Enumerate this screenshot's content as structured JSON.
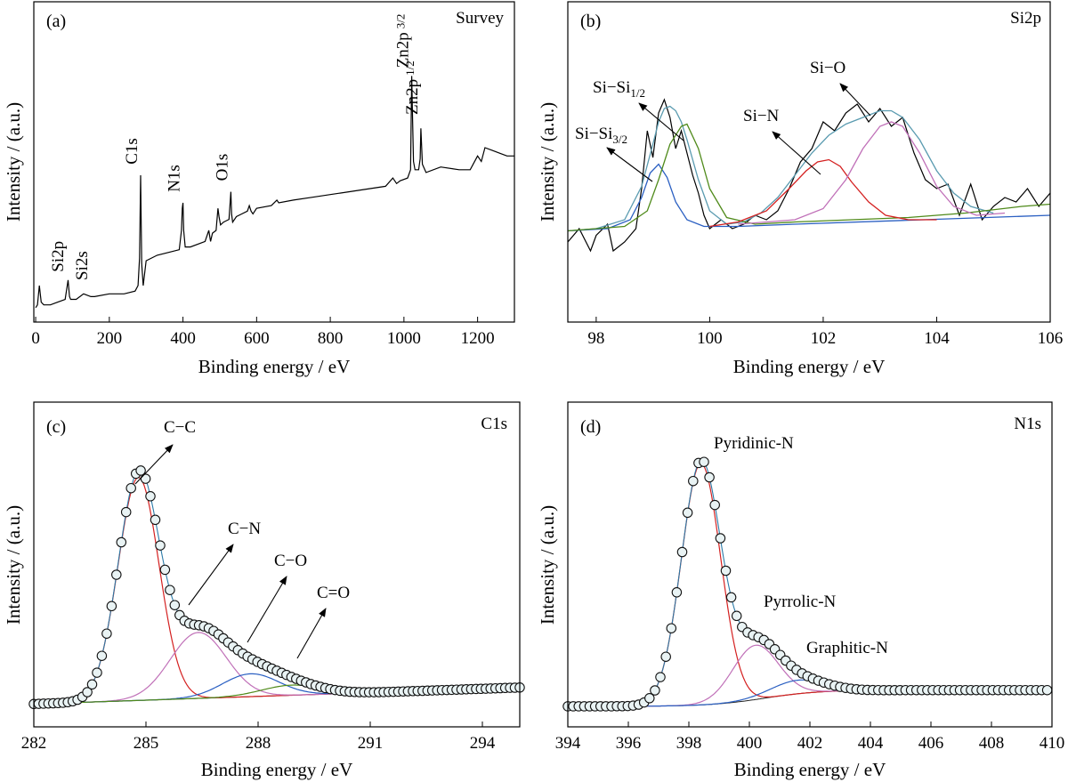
{
  "chart_data": [
    {
      "type": "line",
      "panel": "(a)",
      "title": "Survey",
      "xlabel": "Binding energy / eV",
      "ylabel": "Intensity / (a.u.)",
      "xlim": [
        -5,
        1300
      ],
      "ylim": [
        0,
        1
      ],
      "xticks": [
        "0",
        "200",
        "400",
        "600",
        "800",
        "1000",
        "1200"
      ],
      "grid": false,
      "series": [
        {
          "color": "#000000",
          "x": [
            0,
            5,
            10,
            15,
            22,
            40,
            60,
            80,
            88,
            92,
            95,
            110,
            130,
            150,
            160,
            200,
            240,
            270,
            278,
            282,
            285,
            288,
            292,
            300,
            330,
            360,
            390,
            396,
            398,
            400,
            402,
            406,
            420,
            460,
            470,
            475,
            480,
            490,
            495,
            498,
            502,
            510,
            525,
            530,
            532,
            535,
            545,
            560,
            575,
            580,
            585,
            590,
            600,
            640,
            655,
            660,
            700,
            750,
            800,
            850,
            900,
            950,
            970,
            980,
            990,
            1010,
            1018,
            1021,
            1023,
            1026,
            1030,
            1040,
            1044,
            1046,
            1050,
            1060,
            1100,
            1150,
            1180,
            1200,
            1210,
            1220,
            1240,
            1260,
            1280,
            1300
          ],
          "y": [
            0.02,
            0.03,
            0.1,
            0.04,
            0.03,
            0.03,
            0.04,
            0.05,
            0.12,
            0.06,
            0.05,
            0.05,
            0.07,
            0.06,
            0.06,
            0.07,
            0.07,
            0.08,
            0.1,
            0.2,
            0.5,
            0.18,
            0.1,
            0.19,
            0.21,
            0.22,
            0.23,
            0.3,
            0.38,
            0.4,
            0.3,
            0.24,
            0.24,
            0.26,
            0.3,
            0.26,
            0.29,
            0.3,
            0.38,
            0.35,
            0.32,
            0.33,
            0.34,
            0.44,
            0.36,
            0.33,
            0.35,
            0.36,
            0.37,
            0.39,
            0.37,
            0.36,
            0.38,
            0.39,
            0.41,
            0.4,
            0.41,
            0.42,
            0.43,
            0.44,
            0.45,
            0.46,
            0.49,
            0.47,
            0.48,
            0.49,
            0.52,
            0.86,
            0.73,
            0.55,
            0.52,
            0.52,
            0.56,
            0.67,
            0.54,
            0.51,
            0.53,
            0.52,
            0.52,
            0.57,
            0.55,
            0.6,
            0.59,
            0.58,
            0.57,
            0.57
          ]
        }
      ],
      "annotations": [
        {
          "text": "Si2p",
          "x": 85,
          "y": 0.13,
          "rotate": -90
        },
        {
          "text": "Si2s",
          "x": 150,
          "y": 0.1,
          "rotate": -90
        },
        {
          "text": "C1s",
          "x": 285,
          "y": 0.52,
          "rotate": -90
        },
        {
          "text": "N1s",
          "x": 400,
          "y": 0.42,
          "rotate": -90
        },
        {
          "text": "O1s",
          "x": 530,
          "y": 0.46,
          "rotate": -90
        },
        {
          "text": "Zn2p",
          "sub": "3/2",
          "x": 1021,
          "y": 0.87,
          "rotate": -90
        },
        {
          "text": "Zn2p",
          "sub": "1/2",
          "x": 1046,
          "y": 0.7,
          "rotate": -90
        }
      ]
    },
    {
      "type": "line",
      "panel": "(b)",
      "title": "Si2p",
      "xlabel": "Binding energy / eV",
      "ylabel": "Intensity / (a.u.)",
      "xlim": [
        97.5,
        106
      ],
      "ylim": [
        0,
        1
      ],
      "xticks": [
        "98",
        "100",
        "102",
        "104",
        "106"
      ],
      "grid": false,
      "series": [
        {
          "color": "#000000",
          "x": [
            97.5,
            97.7,
            97.9,
            98.0,
            98.2,
            98.3,
            98.5,
            98.7,
            98.8,
            98.9,
            99.0,
            99.1,
            99.2,
            99.3,
            99.4,
            99.5,
            99.6,
            99.7,
            99.8,
            99.9,
            100.0,
            100.2,
            100.4,
            100.6,
            100.8,
            101.0,
            101.2,
            101.4,
            101.6,
            101.8,
            102.0,
            102.2,
            102.4,
            102.6,
            102.8,
            103.0,
            103.2,
            103.4,
            103.6,
            103.8,
            104.0,
            104.2,
            104.4,
            104.6,
            104.8,
            105.0,
            105.2,
            105.4,
            105.6,
            105.8,
            106.0
          ],
          "y": [
            0.2,
            0.26,
            0.16,
            0.23,
            0.28,
            0.16,
            0.2,
            0.26,
            0.44,
            0.7,
            0.58,
            0.78,
            0.84,
            0.76,
            0.62,
            0.7,
            0.6,
            0.5,
            0.42,
            0.32,
            0.26,
            0.3,
            0.26,
            0.28,
            0.32,
            0.3,
            0.34,
            0.44,
            0.56,
            0.62,
            0.74,
            0.7,
            0.78,
            0.82,
            0.74,
            0.8,
            0.72,
            0.76,
            0.6,
            0.48,
            0.44,
            0.46,
            0.32,
            0.46,
            0.3,
            0.36,
            0.4,
            0.38,
            0.44,
            0.36,
            0.42
          ]
        },
        {
          "color": "#5a9bb0",
          "x": [
            97.5,
            98.0,
            98.5,
            98.8,
            99.0,
            99.1,
            99.2,
            99.3,
            99.4,
            99.5,
            99.6,
            99.8,
            100.0,
            100.3,
            100.6,
            100.9,
            101.2,
            101.5,
            101.8,
            102.1,
            102.4,
            102.7,
            103.0,
            103.2,
            103.4,
            103.7,
            104.0,
            104.3,
            104.6,
            105.0
          ],
          "y": [
            0.25,
            0.26,
            0.3,
            0.45,
            0.64,
            0.74,
            0.8,
            0.81,
            0.79,
            0.74,
            0.66,
            0.48,
            0.34,
            0.28,
            0.29,
            0.33,
            0.4,
            0.5,
            0.6,
            0.68,
            0.73,
            0.76,
            0.79,
            0.79,
            0.76,
            0.66,
            0.52,
            0.42,
            0.36,
            0.33
          ]
        },
        {
          "color": "#2a5fc2",
          "x": [
            97.5,
            98.2,
            98.6,
            98.8,
            98.95,
            99.1,
            99.25,
            99.4,
            99.6,
            99.9,
            100.5,
            101.5,
            106.0
          ],
          "y": [
            0.25,
            0.26,
            0.3,
            0.4,
            0.51,
            0.55,
            0.49,
            0.38,
            0.3,
            0.27,
            0.27,
            0.28,
            0.32
          ]
        },
        {
          "color": "#4f8a1a",
          "x": [
            97.5,
            98.5,
            98.9,
            99.1,
            99.3,
            99.5,
            99.6,
            99.8,
            100.0,
            100.3,
            100.8,
            101.5,
            102.5,
            103.5,
            104.5,
            105.5,
            106.0
          ],
          "y": [
            0.25,
            0.27,
            0.34,
            0.48,
            0.64,
            0.72,
            0.73,
            0.62,
            0.44,
            0.31,
            0.28,
            0.29,
            0.3,
            0.31,
            0.33,
            0.36,
            0.37
          ]
        },
        {
          "color": "#d42020",
          "x": [
            100.0,
            100.5,
            101.0,
            101.4,
            101.7,
            101.9,
            102.1,
            102.3,
            102.5,
            102.8,
            103.1,
            103.5,
            104.0
          ],
          "y": [
            0.27,
            0.29,
            0.34,
            0.44,
            0.52,
            0.56,
            0.57,
            0.54,
            0.47,
            0.38,
            0.32,
            0.3,
            0.3
          ]
        },
        {
          "color": "#c070b8",
          "x": [
            100.5,
            101.5,
            102.0,
            102.4,
            102.7,
            103.0,
            103.2,
            103.4,
            103.7,
            104.0,
            104.3,
            104.7,
            105.2
          ],
          "y": [
            0.28,
            0.3,
            0.35,
            0.48,
            0.62,
            0.72,
            0.74,
            0.72,
            0.6,
            0.45,
            0.36,
            0.32,
            0.33
          ]
        }
      ],
      "annotations": [
        {
          "text": "Si−Si",
          "sub": "3/2"
        },
        {
          "text": "Si−Si",
          "sub": "1/2"
        },
        {
          "text": "Si−N"
        },
        {
          "text": "Si−O"
        }
      ]
    },
    {
      "type": "scatter",
      "panel": "(c)",
      "title": "C1s",
      "xlabel": "Binding energy / eV",
      "ylabel": "Intensity / (a.u.)",
      "xlim": [
        282,
        295
      ],
      "ylim": [
        0,
        1
      ],
      "xticks": [
        "282",
        "285",
        "288",
        "291",
        "294"
      ],
      "grid": false,
      "series": [
        {
          "color": "#d42020",
          "x0": 284.8,
          "sigma": 0.55,
          "amp": 0.88
        },
        {
          "color": "#c070b8",
          "x0": 286.4,
          "sigma": 0.75,
          "amp": 0.26
        },
        {
          "color": "#2a5fc2",
          "x0": 287.8,
          "sigma": 0.75,
          "amp": 0.09
        },
        {
          "color": "#4f8a1a",
          "x0": 288.9,
          "sigma": 0.8,
          "amp": 0.04
        }
      ],
      "annotations": [
        {
          "text": "C−C"
        },
        {
          "text": "C−N"
        },
        {
          "text": "C−O"
        },
        {
          "text": "C=O"
        }
      ]
    },
    {
      "type": "scatter",
      "panel": "(d)",
      "title": "N1s",
      "xlabel": "Binding energy / eV",
      "ylabel": "Intensity / (a.u.)",
      "xlim": [
        394,
        410
      ],
      "ylim": [
        0,
        1
      ],
      "xticks": [
        "394",
        "396",
        "398",
        "400",
        "402",
        "404",
        "406",
        "408",
        "410"
      ],
      "grid": false,
      "series": [
        {
          "color": "#d42020",
          "x0": 398.4,
          "sigma": 0.65,
          "amp": 0.89
        },
        {
          "color": "#c070b8",
          "x0": 400.2,
          "sigma": 0.75,
          "amp": 0.2
        },
        {
          "color": "#2a5fc2",
          "x0": 401.6,
          "sigma": 0.9,
          "amp": 0.05
        }
      ],
      "annotations": [
        {
          "text": "Pyridinic-N"
        },
        {
          "text": "Pyrrolic-N"
        },
        {
          "text": "Graphitic-N"
        }
      ]
    }
  ]
}
